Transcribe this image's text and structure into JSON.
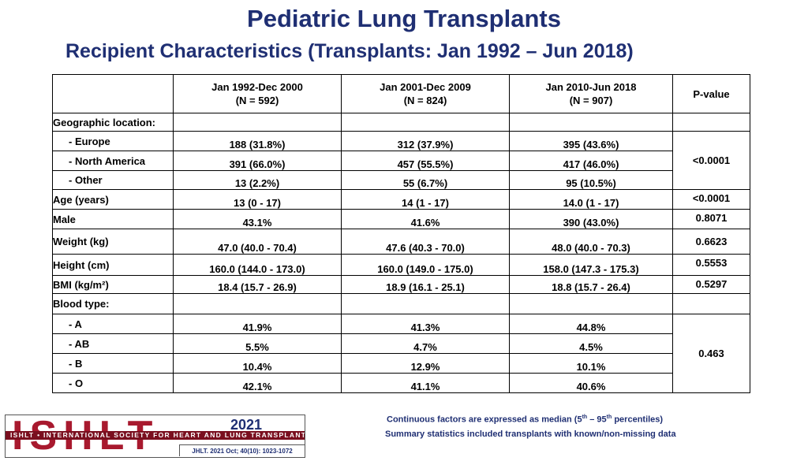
{
  "title": "Pediatric Lung Transplants",
  "subtitle": "Recipient Characteristics (Transplants: Jan 1992 – Jun 2018)",
  "table": {
    "columns": [
      {
        "line1": "Jan 1992-Dec 2000",
        "line2": "(N = 592)"
      },
      {
        "line1": "Jan 2001-Dec 2009",
        "line2": "(N = 824)"
      },
      {
        "line1": "Jan 2010-Jun 2018",
        "line2": "(N = 907)"
      }
    ],
    "pvalue_header": "P-value",
    "geo_label": "Geographic location:",
    "geo_rows": [
      {
        "label": "- Europe",
        "values": [
          "188 (31.8%)",
          "312 (37.9%)",
          "395 (43.6%)"
        ]
      },
      {
        "label": "- North America",
        "values": [
          "391 (66.0%)",
          "457 (55.5%)",
          "417 (46.0%)"
        ]
      },
      {
        "label": "- Other",
        "values": [
          "13 (2.2%)",
          "55 (6.7%)",
          "95 (10.5%)"
        ]
      }
    ],
    "geo_pvalue": "<0.0001",
    "rows": [
      {
        "label": "Age (years)",
        "values": [
          "13 (0 - 17)",
          "14 (1 - 17)",
          "14.0 (1 - 17)"
        ],
        "pvalue": "<0.0001"
      },
      {
        "label": "Male",
        "values": [
          "43.1%",
          "41.6%",
          "390 (43.0%)"
        ],
        "pvalue": "0.8071"
      },
      {
        "label": "Weight (kg)",
        "values": [
          "47.0 (40.0 - 70.4)",
          "47.6 (40.3 - 70.0)",
          "48.0 (40.0 - 70.3)"
        ],
        "pvalue": "0.6623"
      },
      {
        "label": "Height (cm)",
        "values": [
          "160.0 (144.0 - 173.0)",
          "160.0 (149.0 - 175.0)",
          "158.0 (147.3 - 175.3)"
        ],
        "pvalue": "0.5553"
      },
      {
        "label": "BMI (kg/m²)",
        "values": [
          "18.4 (15.7 - 26.9)",
          "18.9 (16.1 - 25.1)",
          "18.8 (15.7 - 26.4)"
        ],
        "pvalue": "0.5297"
      }
    ],
    "blood_label": "Blood type:",
    "blood_rows": [
      {
        "label": "- A",
        "values": [
          "41.9%",
          "41.3%",
          "44.8%"
        ]
      },
      {
        "label": "- AB",
        "values": [
          "5.5%",
          "4.7%",
          "4.5%"
        ]
      },
      {
        "label": "- B",
        "values": [
          "10.4%",
          "12.9%",
          "10.1%"
        ]
      },
      {
        "label": "- O",
        "values": [
          "42.1%",
          "41.1%",
          "40.6%"
        ]
      }
    ],
    "blood_pvalue": "0.463"
  },
  "footnotes": {
    "note1_pre": "Continuous factors are expressed as median (5",
    "note1_sup1": "th",
    "note1_mid": " – 95",
    "note1_sup2": "th",
    "note1_post": " percentiles)",
    "note2": "Summary statistics included transplants with known/non-missing data"
  },
  "logo": {
    "letters": "ISHLT",
    "strip": "ISHLT • INTERNATIONAL SOCIETY FOR HEART AND LUNG TRANSPLANTATION",
    "year": "2021",
    "citation": "JHLT. 2021 Oct; 40(10): 1023-1072"
  },
  "colors": {
    "heading": "#1f2f73",
    "logo_red": "#a8192e",
    "logo_strip": "#7a0f1f"
  }
}
